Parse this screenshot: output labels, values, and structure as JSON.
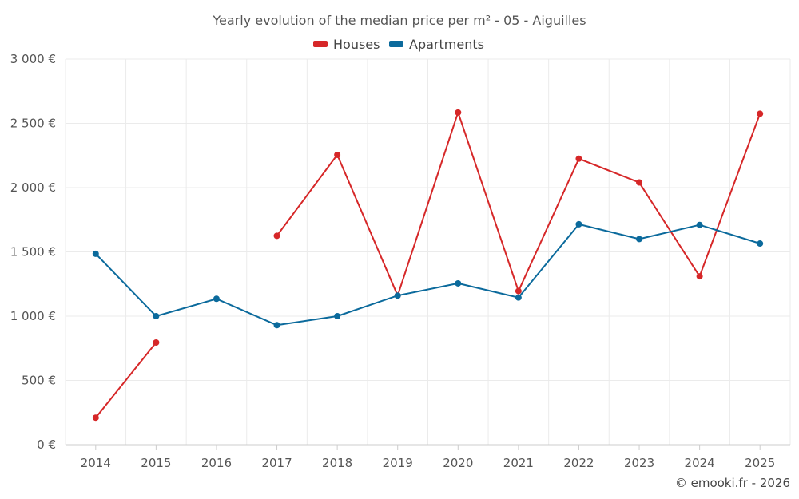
{
  "chart_data": {
    "type": "line",
    "title": "Yearly evolution of the median price per m² - 05 - Aiguilles",
    "xlabel": "",
    "ylabel": "",
    "categories": [
      "2014",
      "2015",
      "2016",
      "2017",
      "2018",
      "2019",
      "2020",
      "2021",
      "2022",
      "2023",
      "2024",
      "2025"
    ],
    "ylim": [
      0,
      3000
    ],
    "yticks": [
      0,
      500,
      1000,
      1500,
      2000,
      2500,
      3000
    ],
    "ytick_labels": [
      "0 €",
      "500 €",
      "1 000 €",
      "1 500 €",
      "2 000 €",
      "2 500 €",
      "3 000 €"
    ],
    "legend_position": "top-center",
    "grid": true,
    "series": [
      {
        "name": "Houses",
        "color": "#d62728",
        "values": [
          210,
          795,
          null,
          1625,
          2255,
          1160,
          2585,
          1195,
          2225,
          2040,
          1310,
          2575
        ]
      },
      {
        "name": "Apartments",
        "color": "#0b6a9c",
        "values": [
          1485,
          1000,
          1135,
          930,
          1000,
          1160,
          1255,
          1145,
          1715,
          1600,
          1710,
          1565
        ]
      }
    ]
  },
  "footer": {
    "credit": "© emooki.fr - 2026"
  }
}
